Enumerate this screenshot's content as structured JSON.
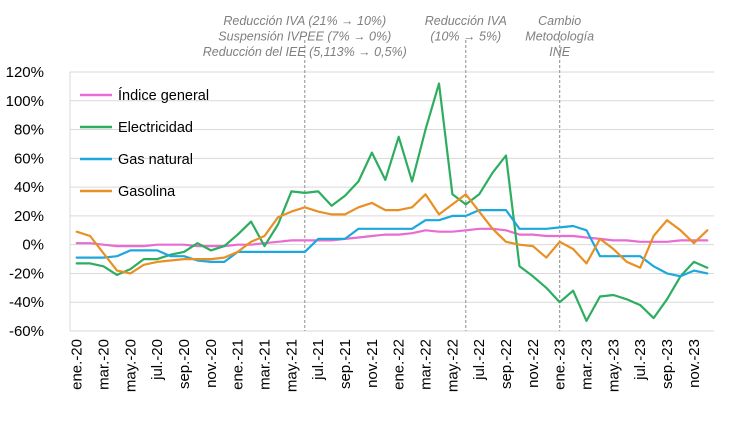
{
  "chart_data": {
    "type": "line",
    "title": "",
    "xlabel": "",
    "ylabel": "",
    "ylim": [
      -60,
      120
    ],
    "yticks": [
      -60,
      -40,
      -20,
      0,
      20,
      40,
      60,
      80,
      100,
      120
    ],
    "ytick_labels": [
      "-60%",
      "-40%",
      "-20%",
      "0%",
      "20%",
      "40%",
      "60%",
      "80%",
      "100%",
      "120%"
    ],
    "y_format": "percent",
    "grid": "horizontal",
    "legend": "top-left",
    "categories": [
      "ene.-20",
      "feb.-20",
      "mar.-20",
      "abr.-20",
      "may.-20",
      "jun.-20",
      "jul.-20",
      "ago.-20",
      "sep.-20",
      "oct.-20",
      "nov.-20",
      "dic.-20",
      "ene.-21",
      "feb.-21",
      "mar.-21",
      "abr.-21",
      "may.-21",
      "jun.-21",
      "jul.-21",
      "ago.-21",
      "sep.-21",
      "oct.-21",
      "nov.-21",
      "dic.-21",
      "ene.-22",
      "feb.-22",
      "mar.-22",
      "abr.-22",
      "may.-22",
      "jun.-22",
      "jul.-22",
      "ago.-22",
      "sep.-22",
      "oct.-22",
      "nov.-22",
      "dic.-22",
      "ene.-23",
      "feb.-23",
      "mar.-23",
      "abr.-23",
      "may.-23",
      "jun.-23",
      "jul.-23",
      "ago.-23",
      "sep.-23",
      "oct.-23",
      "nov.-23",
      "dic.-23"
    ],
    "tick_labels": [
      "ene.-20",
      "mar.-20",
      "may.-20",
      "jul.-20",
      "sep.-20",
      "nov.-20",
      "ene.-21",
      "mar.-21",
      "may.-21",
      "jul.-21",
      "sep.-21",
      "nov.-21",
      "ene.-22",
      "mar.-22",
      "may.-22",
      "jul.-22",
      "sep.-22",
      "nov.-22",
      "ene.-23",
      "mar.-23",
      "may.-23",
      "jul.-23",
      "sep.-23",
      "nov.-23"
    ],
    "series": [
      {
        "name": "Índice general",
        "color": "#e86cd1",
        "values": [
          1,
          1,
          0,
          -1,
          -1,
          -1,
          0,
          0,
          0,
          -1,
          -1,
          -1,
          0,
          0,
          1,
          2,
          3,
          3,
          3,
          3,
          4,
          5,
          6,
          7,
          7,
          8,
          10,
          9,
          9,
          10,
          11,
          11,
          10,
          7,
          7,
          6,
          6,
          6,
          5,
          4,
          3,
          3,
          2,
          2,
          2,
          3,
          3,
          3
        ]
      },
      {
        "name": "Electricidad",
        "color": "#2dad5f",
        "values": [
          -13,
          -13,
          -15,
          -21,
          -17,
          -10,
          -10,
          -7,
          -5,
          1,
          -4,
          -1,
          7,
          16,
          -1,
          14,
          37,
          36,
          37,
          27,
          34,
          44,
          64,
          45,
          75,
          44,
          80,
          112,
          35,
          28,
          35,
          50,
          62,
          -15,
          -22,
          -30,
          -40,
          -32,
          -53,
          -36,
          -35,
          -38,
          -42,
          -51,
          -38,
          -22,
          -12,
          -16
        ]
      },
      {
        "name": "Gas natural",
        "color": "#1ca8dd",
        "values": [
          -9,
          -9,
          -9,
          -8,
          -4,
          -4,
          -4,
          -8,
          -8,
          -11,
          -12,
          -12,
          -5,
          -5,
          -5,
          -5,
          -5,
          -5,
          4,
          4,
          4,
          11,
          11,
          11,
          11,
          11,
          17,
          17,
          20,
          20,
          24,
          24,
          24,
          11,
          11,
          11,
          12,
          13,
          10,
          -8,
          -8,
          -8,
          -8,
          -15,
          -20,
          -22,
          -18,
          -20
        ]
      },
      {
        "name": "Gasolina",
        "color": "#e99024",
        "values": [
          9,
          6,
          -6,
          -18,
          -20,
          -14,
          -12,
          -11,
          -10,
          -10,
          -10,
          -9,
          -5,
          2,
          6,
          19,
          23,
          26,
          23,
          21,
          21,
          26,
          29,
          24,
          24,
          26,
          35,
          21,
          28,
          35,
          23,
          11,
          2,
          0,
          -1,
          -9,
          2,
          -3,
          -13,
          4,
          -3,
          -12,
          -16,
          6,
          17,
          10,
          1,
          10
        ]
      }
    ],
    "reference_lines": [
      {
        "at": "jun.-21",
        "annotation": [
          "Reducción IVA (21% → 10%)",
          "Suspensión IVPEE (7% → 0%)",
          "Reducción del IEE (5,113% → 0,5%)"
        ]
      },
      {
        "at": "jun.-22",
        "annotation": [
          "Reducción IVA",
          "(10% → 5%)"
        ]
      },
      {
        "at": "ene.-23",
        "annotation": [
          "Cambio",
          "Metodología",
          "INE"
        ]
      }
    ]
  }
}
